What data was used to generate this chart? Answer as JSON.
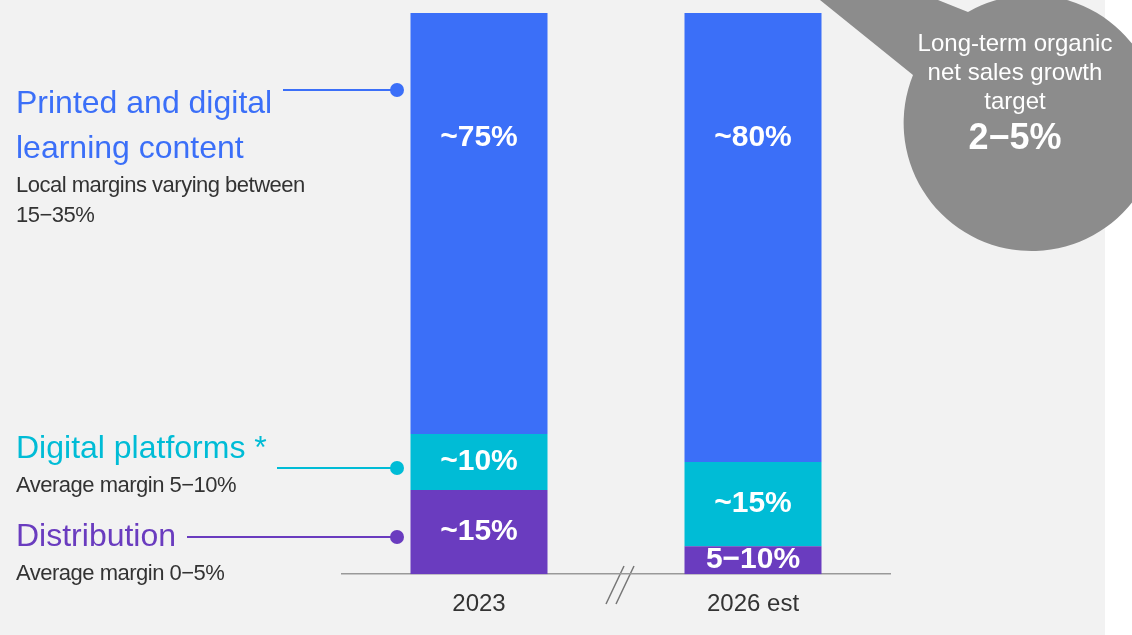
{
  "chart_data": {
    "type": "bar",
    "stacked": true,
    "categories": [
      "2023",
      "2026 est"
    ],
    "series": [
      {
        "name": "Distribution",
        "color": "#6a3cbf",
        "values": [
          15,
          5
        ],
        "value_labels": [
          "~15%",
          "5−10%"
        ]
      },
      {
        "name": "Digital platforms *",
        "color": "#00bcd6",
        "values": [
          10,
          15
        ],
        "value_labels": [
          "~10%",
          "~15%"
        ]
      },
      {
        "name": "Printed and digital learning content",
        "color": "#3b6ff8",
        "values": [
          75,
          80
        ],
        "value_labels": [
          "~75%",
          "~80%"
        ]
      }
    ],
    "ylim": [
      0,
      100
    ],
    "tick_labels": "x",
    "legend": "left",
    "annotations": [
      "Average margin 0−5%",
      "Average margin 5−10%",
      "Local margins varying between 15−35%",
      "Long-term organic net sales growth target",
      "2−5%"
    ]
  }
}
